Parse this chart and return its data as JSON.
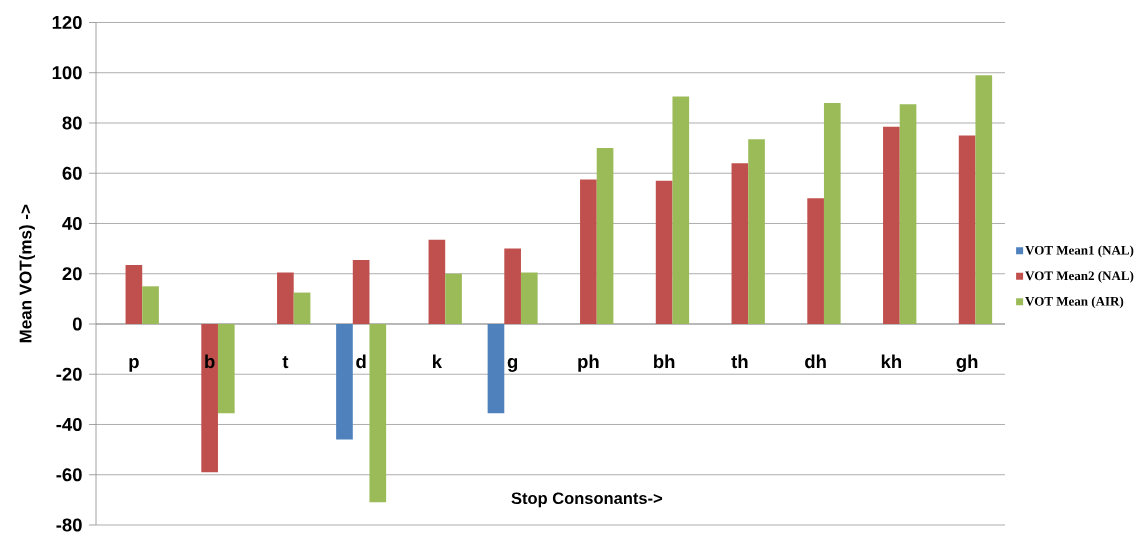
{
  "chart_data": {
    "type": "bar",
    "xlabel": "Stop Consonants->",
    "ylabel": "Mean VOT(ms) ->",
    "categories": [
      "p",
      "b",
      "t",
      "d",
      "k",
      "g",
      "ph",
      "bh",
      "th",
      "dh",
      "kh",
      "gh"
    ],
    "series": [
      {
        "name": "VOT Mean1 (NAL)",
        "color": "#4f81bd",
        "values": [
          null,
          null,
          null,
          -46,
          null,
          -35.5,
          null,
          null,
          null,
          null,
          null,
          null
        ]
      },
      {
        "name": "VOT Mean2 (NAL)",
        "color": "#c0504d",
        "values": [
          23.5,
          -59,
          20.5,
          25.5,
          33.5,
          30,
          57.5,
          57,
          64,
          50,
          78.5,
          75
        ]
      },
      {
        "name": "VOT Mean (AIR)",
        "color": "#9bbb59",
        "values": [
          15,
          -35.5,
          12.5,
          -71,
          20,
          20.5,
          70,
          90.5,
          73.5,
          88,
          87.5,
          99
        ]
      }
    ],
    "ylim": [
      -80,
      120
    ],
    "yticks": [
      -80,
      -60,
      -40,
      -20,
      0,
      20,
      40,
      60,
      80,
      100,
      120
    ],
    "grid": "y",
    "legend": "right"
  }
}
